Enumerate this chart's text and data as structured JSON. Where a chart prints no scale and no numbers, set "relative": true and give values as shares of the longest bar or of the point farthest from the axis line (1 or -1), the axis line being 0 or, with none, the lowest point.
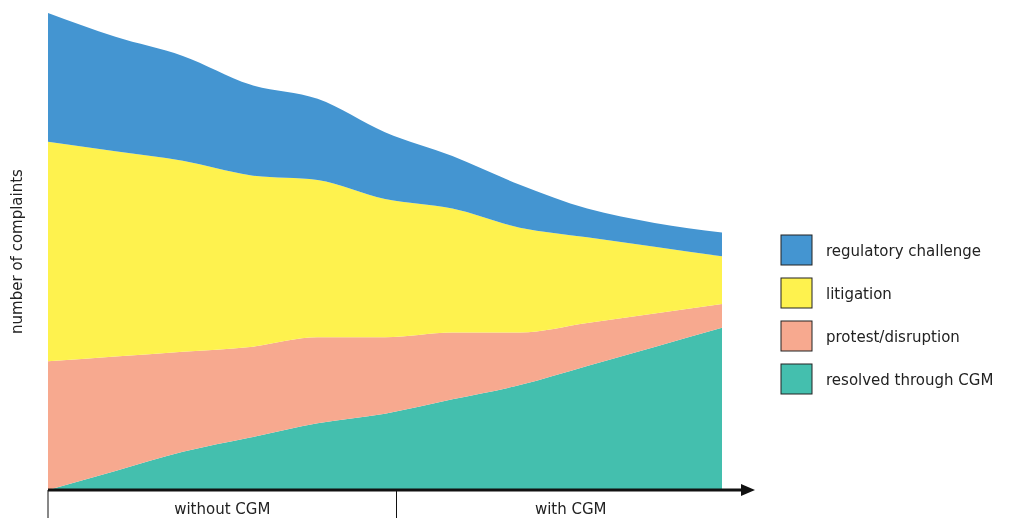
{
  "chart_data": {
    "type": "area",
    "stacked": true,
    "relative": true,
    "ylabel": "number of complaints",
    "categories": [
      null,
      null,
      null,
      null,
      null,
      null,
      null,
      null,
      null,
      null,
      null
    ],
    "series": [
      {
        "name": "resolved through CGM",
        "color": "#44bfae",
        "values": [
          0,
          0.04,
          0.08,
          0.11,
          0.14,
          0.16,
          0.19,
          0.22,
          0.26,
          0.3,
          0.34
        ]
      },
      {
        "name": "protest/disruption",
        "color": "#f7a98f",
        "values": [
          0.27,
          0.24,
          0.21,
          0.19,
          0.18,
          0.16,
          0.14,
          0.11,
          0.09,
          0.07,
          0.05
        ]
      },
      {
        "name": "litigation",
        "color": "#fef24e",
        "values": [
          0.46,
          0.43,
          0.4,
          0.36,
          0.33,
          0.29,
          0.26,
          0.22,
          0.18,
          0.14,
          0.1
        ]
      },
      {
        "name": "regulatory challenge",
        "color": "#4495d1",
        "values": [
          0.27,
          0.24,
          0.22,
          0.19,
          0.17,
          0.14,
          0.11,
          0.09,
          0.06,
          0.05,
          0.05
        ]
      }
    ],
    "annotations": [
      "without CGM",
      "with CGM"
    ],
    "legend": "right"
  }
}
